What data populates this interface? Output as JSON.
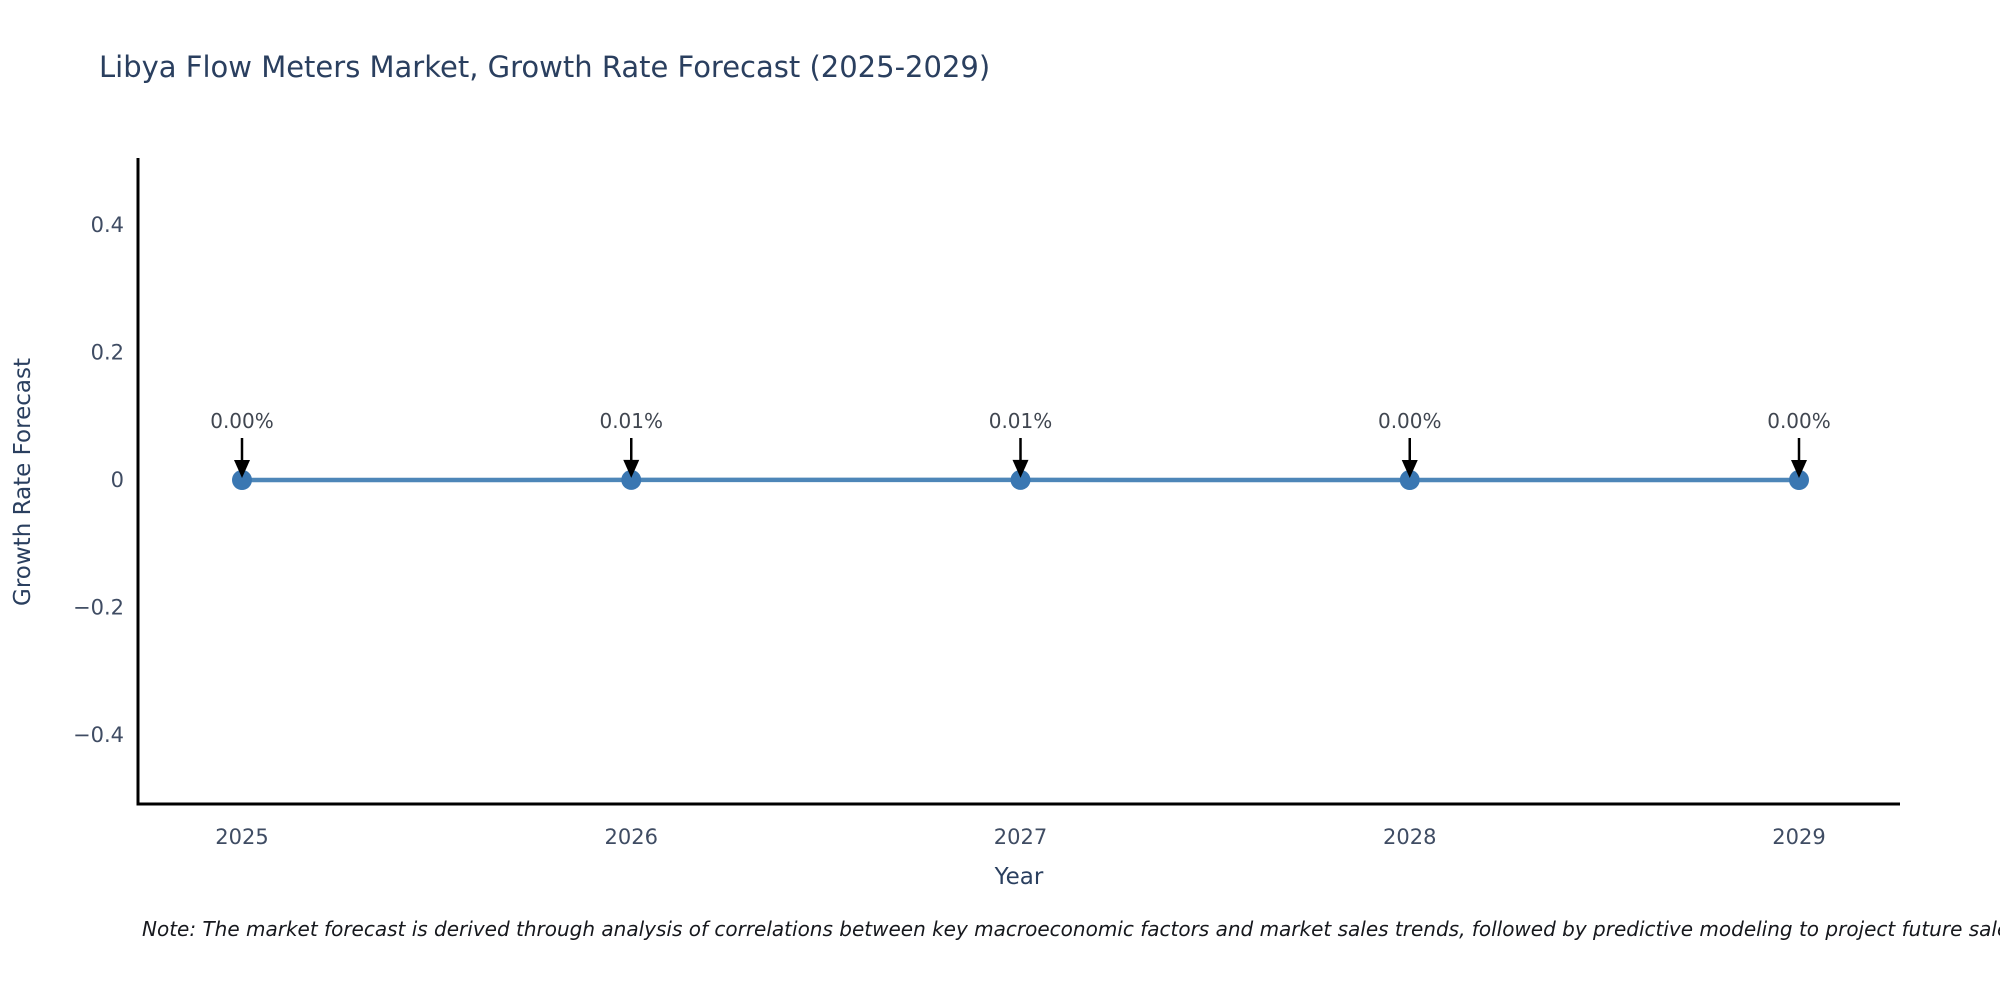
{
  "title": "Libya Flow Meters Market, Growth Rate Forecast (2025-2029)",
  "note": "Note: The market forecast is derived through analysis of correlations between key macroeconomic factors and market sales trends, followed by predictive modeling to project future sales.",
  "colors": {
    "background": "#ffffff",
    "title": "#2a3f5f",
    "axis_line": "#000000",
    "tick_label": "#3f4c63",
    "axis_title": "#2a3f5f",
    "series_line": "#4d86b8",
    "marker_fill": "#3a77b2",
    "annotation_text": "#404650",
    "annotation_arrow": "#000000",
    "note_text": "#16181d"
  },
  "chart_data": {
    "type": "line",
    "title": "Libya Flow Meters Market, Growth Rate Forecast (2025-2029)",
    "x": [
      2025,
      2026,
      2027,
      2028,
      2029
    ],
    "x_tick_labels": [
      "2025",
      "2026",
      "2027",
      "2028",
      "2029"
    ],
    "values": [
      0.0,
      0.0001,
      0.0001,
      0.0,
      0.0
    ],
    "point_labels": [
      "0.00%",
      "0.01%",
      "0.01%",
      "0.00%",
      "0.00%"
    ],
    "xlabel": "Year",
    "ylabel": "Growth Rate Forecast",
    "ylim": [
      -0.5,
      0.5
    ],
    "yticks": [
      0.4,
      0.2,
      0,
      -0.2,
      -0.4
    ],
    "ytick_labels": [
      "0.4",
      "0.2",
      "0",
      "−0.2",
      "−0.4"
    ],
    "grid": false,
    "legend_position": "none",
    "marker": "circle",
    "annotations_have_arrows": true
  }
}
